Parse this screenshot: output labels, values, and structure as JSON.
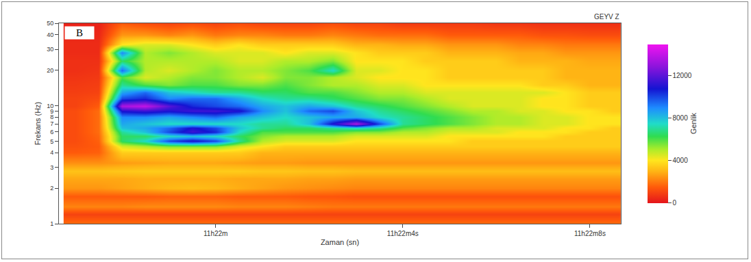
{
  "chart_data": {
    "type": "heatmap",
    "title": "GEYV Z",
    "panel": "B",
    "xlabel": "Zaman (sn)",
    "ylabel": "Frekans (Hz)",
    "log": "y",
    "x": [
      -3,
      -2.5,
      -2,
      -1.5,
      -1,
      -0.5,
      0,
      0.5,
      1,
      1.5,
      2,
      2.5,
      3,
      3.5,
      4,
      4.5,
      5,
      5.5,
      6,
      6.5,
      7,
      7.5,
      8,
      8.5
    ],
    "y": [
      1,
      1.2,
      1.4,
      1.7,
      2,
      2.4,
      2.8,
      3.3,
      4,
      4.5,
      5,
      5.5,
      6,
      6.5,
      7,
      8,
      9,
      10,
      11.5,
      13,
      15,
      17.5,
      20,
      24,
      28,
      33,
      40,
      50
    ],
    "z": [
      [
        1800,
        1800,
        1800,
        1800,
        1800,
        1800,
        1800,
        1800,
        1800,
        1800,
        1800,
        1800,
        1800,
        1800,
        1800,
        1800,
        1800,
        1800,
        1800,
        1800,
        1800,
        1800,
        1800,
        1800
      ],
      [
        1000,
        1000,
        1000,
        1000,
        1000,
        1000,
        1000,
        1000,
        1000,
        1000,
        1000,
        1000,
        1000,
        1000,
        1000,
        1000,
        1000,
        1000,
        1000,
        1000,
        1000,
        1000,
        1000,
        1000
      ],
      [
        2200,
        2200,
        2200,
        2300,
        2300,
        2300,
        2300,
        2200,
        2200,
        2200,
        2100,
        2000,
        2000,
        2000,
        2000,
        2000,
        2000,
        2000,
        2000,
        2000,
        2000,
        2000,
        2000,
        2000
      ],
      [
        1500,
        1500,
        1500,
        1500,
        1600,
        1600,
        1600,
        1500,
        1500,
        1500,
        1400,
        1400,
        1300,
        1300,
        1300,
        1300,
        1300,
        1300,
        1300,
        1300,
        1300,
        1300,
        1300,
        1300
      ],
      [
        2500,
        2500,
        2700,
        2900,
        3100,
        3200,
        3100,
        2900,
        2700,
        2500,
        2400,
        2300,
        2200,
        2200,
        2200,
        2200,
        2200,
        2200,
        2200,
        2200,
        2200,
        2200,
        2200,
        2200
      ],
      [
        2800,
        2800,
        2800,
        2900,
        2900,
        2900,
        2900,
        2800,
        2800,
        2800,
        2700,
        2700,
        2600,
        2600,
        2600,
        2600,
        2600,
        2600,
        2600,
        2600,
        2600,
        2600,
        2600,
        2600
      ],
      [
        3300,
        3300,
        3400,
        3500,
        3500,
        3500,
        3500,
        3500,
        3400,
        3400,
        3300,
        3300,
        3200,
        3200,
        3200,
        3200,
        3200,
        3200,
        3200,
        3200,
        3200,
        3200,
        3200,
        3200
      ],
      [
        2400,
        2400,
        2600,
        2700,
        2800,
        2800,
        2800,
        2700,
        2600,
        2600,
        2500,
        2500,
        2500,
        2500,
        2500,
        2500,
        2500,
        2500,
        2500,
        2500,
        2500,
        2500,
        2500,
        2500
      ],
      [
        1500,
        1600,
        3500,
        3500,
        3500,
        3500,
        3500,
        3500,
        3000,
        3000,
        3000,
        3000,
        3000,
        3000,
        3000,
        3000,
        3000,
        3000,
        3000,
        3000,
        3000,
        3000,
        3000,
        3000
      ],
      [
        1300,
        1500,
        4500,
        5000,
        5500,
        5500,
        5500,
        4500,
        4000,
        3500,
        3500,
        3500,
        3500,
        3500,
        3500,
        3500,
        3500,
        3500,
        3500,
        3500,
        3500,
        3500,
        3500,
        3500
      ],
      [
        1200,
        1600,
        6500,
        7500,
        10000,
        11000,
        10000,
        7000,
        5000,
        4500,
        4500,
        4500,
        4000,
        4000,
        4000,
        4000,
        4000,
        3500,
        3500,
        3500,
        3500,
        3500,
        3500,
        3500
      ],
      [
        1200,
        1700,
        6500,
        6500,
        7500,
        8000,
        7500,
        6500,
        5500,
        5000,
        5000,
        5000,
        4500,
        4500,
        4500,
        4500,
        4000,
        4000,
        4000,
        4000,
        4000,
        3500,
        3500,
        3500
      ],
      [
        1200,
        1800,
        7000,
        8000,
        10000,
        11500,
        10500,
        7500,
        6000,
        6000,
        6000,
        6000,
        5500,
        5500,
        5000,
        5000,
        4500,
        4500,
        4500,
        4000,
        4000,
        4000,
        3500,
        3500
      ],
      [
        1200,
        1800,
        8000,
        8500,
        9500,
        11000,
        10000,
        8000,
        7000,
        6500,
        6500,
        7000,
        7500,
        7000,
        6000,
        5500,
        5000,
        5000,
        4500,
        4500,
        4500,
        4000,
        4000,
        3500
      ],
      [
        1200,
        1800,
        8500,
        8000,
        7500,
        7500,
        7500,
        7500,
        7000,
        7000,
        8000,
        11000,
        13500,
        10000,
        7000,
        6500,
        6000,
        5500,
        5000,
        5000,
        4500,
        4500,
        4000,
        4000
      ],
      [
        1200,
        1800,
        9000,
        9000,
        8500,
        9000,
        9500,
        8500,
        8000,
        7500,
        8000,
        8500,
        8500,
        7500,
        7000,
        6500,
        6000,
        5500,
        5000,
        5000,
        4500,
        4500,
        4000,
        4000
      ],
      [
        1200,
        1800,
        11000,
        11500,
        11000,
        11500,
        11500,
        11000,
        9000,
        8000,
        9500,
        10000,
        8000,
        7000,
        6500,
        6000,
        5500,
        5000,
        5000,
        4500,
        4500,
        4000,
        4000,
        3500
      ],
      [
        1000,
        1500,
        13500,
        14000,
        12000,
        10500,
        10000,
        9500,
        8500,
        8000,
        8500,
        8000,
        7000,
        6500,
        6000,
        5500,
        5000,
        4500,
        4500,
        4500,
        4000,
        4000,
        3500,
        3500
      ],
      [
        1000,
        1200,
        10000,
        10500,
        9000,
        9500,
        9500,
        8500,
        7500,
        7000,
        7000,
        6500,
        6000,
        5500,
        5500,
        5000,
        4500,
        4500,
        4500,
        4500,
        4000,
        4000,
        3500,
        3500
      ],
      [
        900,
        1000,
        8500,
        9500,
        8000,
        7500,
        7000,
        7000,
        6500,
        6500,
        6000,
        6000,
        5500,
        5000,
        5000,
        4500,
        4500,
        4500,
        4500,
        4500,
        4500,
        4000,
        3500,
        3500
      ],
      [
        800,
        900,
        7000,
        6000,
        5500,
        6000,
        6000,
        5500,
        5500,
        6000,
        5500,
        5000,
        5000,
        4500,
        4500,
        4000,
        4000,
        4000,
        4000,
        4000,
        3500,
        3500,
        3000,
        3000
      ],
      [
        700,
        800,
        6000,
        4500,
        5000,
        5500,
        5500,
        5000,
        4500,
        5500,
        5500,
        5000,
        4500,
        4000,
        4000,
        4000,
        3500,
        3500,
        3500,
        3500,
        3500,
        3000,
        3000,
        3000
      ],
      [
        600,
        700,
        9500,
        5000,
        4500,
        5000,
        5500,
        5000,
        5000,
        5500,
        6000,
        7500,
        4500,
        4500,
        4000,
        4000,
        3500,
        3500,
        3500,
        3500,
        3500,
        3000,
        3000,
        3000
      ],
      [
        600,
        600,
        6500,
        5000,
        5000,
        5000,
        5000,
        4500,
        4500,
        5000,
        5000,
        5500,
        4000,
        4000,
        4000,
        3500,
        3500,
        3500,
        3500,
        3000,
        3000,
        3000,
        2800,
        2800
      ],
      [
        500,
        500,
        9000,
        5000,
        5500,
        5000,
        4500,
        4500,
        4500,
        4000,
        4500,
        4500,
        4000,
        3500,
        3500,
        3500,
        3000,
        3000,
        3000,
        2800,
        2800,
        2500,
        2500,
        2500
      ],
      [
        500,
        500,
        4000,
        4500,
        4500,
        4000,
        3500,
        4000,
        3500,
        3500,
        3500,
        3500,
        3000,
        3000,
        2800,
        2800,
        2500,
        2500,
        2500,
        2200,
        2200,
        2000,
        2000,
        2000
      ],
      [
        400,
        400,
        2500,
        2500,
        2200,
        2500,
        2000,
        2200,
        2200,
        2000,
        2000,
        2200,
        2000,
        1800,
        1800,
        1800,
        1500,
        1500,
        1500,
        1500,
        1300,
        1300,
        1200,
        1200
      ],
      [
        300,
        300,
        1500,
        1200,
        1000,
        1200,
        1000,
        1200,
        1000,
        1000,
        1000,
        1200,
        1000,
        1000,
        800,
        800,
        800,
        800,
        700,
        700,
        600,
        600,
        600,
        600
      ]
    ],
    "xlim": [
      -3.35,
      8.66
    ],
    "xticks": [
      {
        "value": 0,
        "label": "11h22m"
      },
      {
        "value": 4,
        "label": "11h22m4s"
      },
      {
        "value": 8,
        "label": "11h22m8s"
      }
    ],
    "ylim": [
      1,
      50
    ],
    "yticks": [
      1,
      2,
      3,
      4,
      5,
      6,
      7,
      8,
      9,
      10,
      20,
      30,
      40,
      50
    ],
    "colorbar": {
      "title": "Genlik",
      "range": [
        0,
        15000
      ],
      "ticks": [
        0,
        4000,
        8000,
        12000
      ]
    }
  }
}
